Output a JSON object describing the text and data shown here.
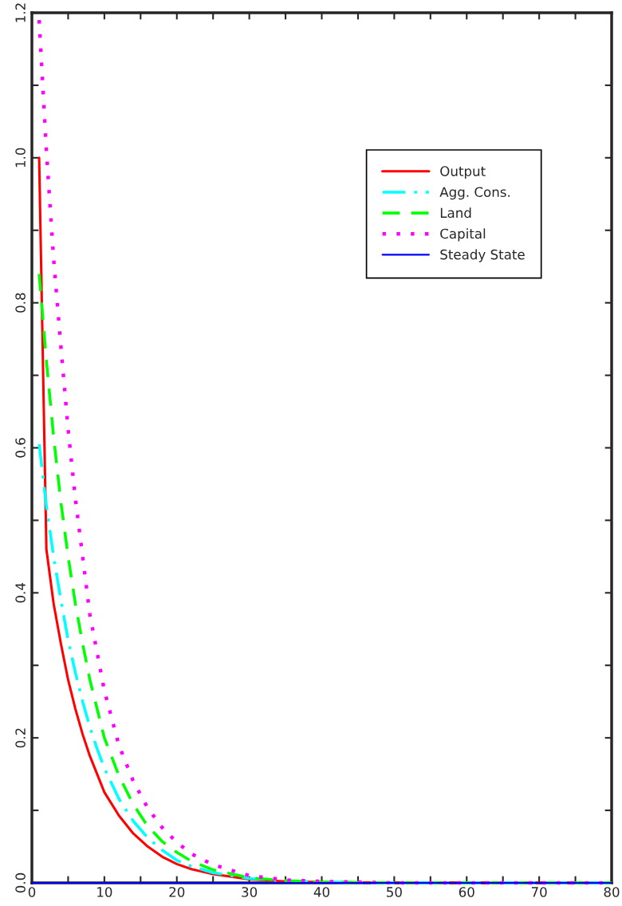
{
  "chart_data": {
    "type": "line",
    "xlim": [
      0,
      80
    ],
    "ylim": [
      0,
      1.2
    ],
    "xticks": [
      0,
      {
        "value": 5,
        "label": null
      },
      10,
      {
        "value": 15,
        "label": null
      },
      20,
      {
        "value": 25,
        "label": null
      },
      30,
      {
        "value": 35,
        "label": null
      },
      40,
      {
        "value": 45,
        "label": null
      },
      50,
      {
        "value": 55,
        "label": null
      },
      60,
      {
        "value": 65,
        "label": null
      },
      70,
      {
        "value": 75,
        "label": null
      },
      80
    ],
    "yticks": [
      {
        "value": 0,
        "label": "0.0"
      },
      {
        "value": 0.1,
        "label": null
      },
      {
        "value": 0.2,
        "label": "0.2"
      },
      {
        "value": 0.3,
        "label": null
      },
      {
        "value": 0.4,
        "label": "0.4"
      },
      {
        "value": 0.5,
        "label": null
      },
      {
        "value": 0.6,
        "label": "0.6"
      },
      {
        "value": 0.7,
        "label": null
      },
      {
        "value": 0.8,
        "label": "0.8"
      },
      {
        "value": 0.9,
        "label": null
      },
      {
        "value": 1.0,
        "label": "1.0"
      },
      {
        "value": 1.1,
        "label": null
      },
      {
        "value": 1.2,
        "label": "1.2"
      }
    ],
    "grid": false,
    "legend": "top right",
    "marker": "none",
    "series": [
      {
        "name": "Output",
        "color": "#ff0000",
        "line_style": "solid",
        "x": [
          1,
          2,
          3,
          4,
          5,
          6,
          7,
          8,
          10,
          12,
          14,
          16,
          18,
          20,
          22,
          25,
          30,
          35,
          40,
          50,
          80
        ],
        "values": [
          1.0,
          0.46,
          0.385,
          0.33,
          0.28,
          0.24,
          0.205,
          0.175,
          0.125,
          0.093,
          0.068,
          0.05,
          0.036,
          0.026,
          0.019,
          0.012,
          0.005,
          0.002,
          0.001,
          0,
          0
        ]
      },
      {
        "name": "Agg. Cons.",
        "color": "#00ffff",
        "line_style": "dashdot",
        "x": [
          1,
          2,
          3,
          4,
          5,
          6,
          7,
          8,
          9,
          10,
          12,
          14,
          16,
          18,
          20,
          22,
          25,
          30,
          35,
          40,
          50,
          80
        ],
        "values": [
          0.605,
          0.52,
          0.45,
          0.39,
          0.335,
          0.29,
          0.25,
          0.215,
          0.185,
          0.158,
          0.116,
          0.085,
          0.062,
          0.045,
          0.031,
          0.023,
          0.014,
          0.006,
          0.003,
          0.001,
          0,
          0
        ]
      },
      {
        "name": "Land",
        "color": "#00ff00",
        "line_style": "dashed",
        "x": [
          1,
          2,
          3,
          4,
          5,
          6,
          7,
          8,
          10,
          12,
          14,
          16,
          18,
          20,
          22,
          25,
          30,
          35,
          40,
          50,
          80
        ],
        "values": [
          0.84,
          0.72,
          0.615,
          0.525,
          0.45,
          0.385,
          0.33,
          0.28,
          0.2,
          0.148,
          0.108,
          0.078,
          0.057,
          0.042,
          0.03,
          0.018,
          0.007,
          0.003,
          0.001,
          0,
          0
        ]
      },
      {
        "name": "Capital",
        "color": "#ff00ff",
        "line_style": "dotted",
        "x": [
          1,
          2,
          3,
          4,
          5,
          6,
          7,
          8,
          10,
          12,
          14,
          16,
          18,
          20,
          22,
          25,
          30,
          35,
          40,
          50,
          80
        ],
        "values": [
          1.19,
          1.01,
          0.86,
          0.74,
          0.625,
          0.53,
          0.45,
          0.37,
          0.265,
          0.19,
          0.14,
          0.103,
          0.076,
          0.056,
          0.04,
          0.025,
          0.01,
          0.004,
          0.002,
          0,
          0
        ]
      },
      {
        "name": "Steady State",
        "color": "#0000ff",
        "line_style": "solid",
        "x": [
          0,
          80
        ],
        "values": [
          0,
          0
        ]
      }
    ]
  }
}
